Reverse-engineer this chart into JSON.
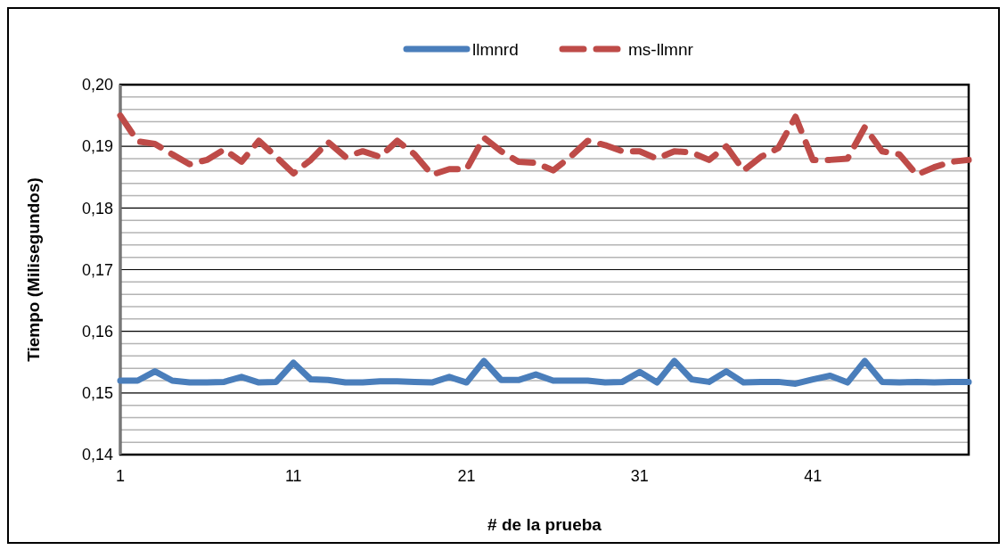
{
  "chart_data": {
    "type": "line",
    "xlabel": "# de la prueba",
    "ylabel": "Tiempo (Milisegundos)",
    "x": [
      1,
      2,
      3,
      4,
      5,
      6,
      7,
      8,
      9,
      10,
      11,
      12,
      13,
      14,
      15,
      16,
      17,
      18,
      19,
      20,
      21,
      22,
      23,
      24,
      25,
      26,
      27,
      28,
      29,
      30,
      31,
      32,
      33,
      34,
      35,
      36,
      37,
      38,
      39,
      40,
      41,
      42,
      43,
      44,
      45,
      46,
      47,
      48,
      49,
      50
    ],
    "series": [
      {
        "name": "llmnrd",
        "color": "#4a7ebb",
        "line_style": "solid",
        "values": [
          0.152,
          0.152,
          0.1535,
          0.152,
          0.1517,
          0.1517,
          0.1518,
          0.1526,
          0.1517,
          0.1518,
          0.1549,
          0.1522,
          0.1521,
          0.1517,
          0.1517,
          0.1519,
          0.1519,
          0.1518,
          0.1517,
          0.1526,
          0.1517,
          0.1552,
          0.1521,
          0.1521,
          0.153,
          0.152,
          0.152,
          0.152,
          0.1517,
          0.1518,
          0.1534,
          0.1517,
          0.1552,
          0.1522,
          0.1518,
          0.1535,
          0.1517,
          0.1518,
          0.1518,
          0.1515,
          0.1522,
          0.1528,
          0.1517,
          0.1552,
          0.1518,
          0.1517,
          0.1518,
          0.1517,
          0.1518,
          0.1518
        ]
      },
      {
        "name": "ms-llmnr",
        "color": "#be4b48",
        "line_style": "dashed",
        "values": [
          0.195,
          0.1908,
          0.1904,
          0.1887,
          0.1871,
          0.1878,
          0.1895,
          0.1875,
          0.1909,
          0.1883,
          0.1856,
          0.1878,
          0.1907,
          0.1883,
          0.1892,
          0.1883,
          0.1909,
          0.1887,
          0.1854,
          0.1863,
          0.1863,
          0.1914,
          0.1892,
          0.1875,
          0.1873,
          0.1861,
          0.1883,
          0.1909,
          0.1902,
          0.1892,
          0.1892,
          0.188,
          0.1892,
          0.189,
          0.1878,
          0.19,
          0.1861,
          0.1883,
          0.1897,
          0.1948,
          0.1878,
          0.1878,
          0.188,
          0.1931,
          0.1892,
          0.1887,
          0.1854,
          0.1866,
          0.1875,
          0.1878
        ]
      }
    ],
    "xlim": [
      1,
      50
    ],
    "xticks": [
      1,
      11,
      21,
      31,
      41
    ],
    "ylim": [
      0.14,
      0.2
    ],
    "yticks": [
      {
        "value": 0.14,
        "label": "0,14"
      },
      {
        "value": 0.142,
        "label": null
      },
      {
        "value": 0.144,
        "label": null
      },
      {
        "value": 0.146,
        "label": null
      },
      {
        "value": 0.148,
        "label": null
      },
      {
        "value": 0.15,
        "label": "0,15"
      },
      {
        "value": 0.152,
        "label": null
      },
      {
        "value": 0.154,
        "label": null
      },
      {
        "value": 0.156,
        "label": null
      },
      {
        "value": 0.158,
        "label": null
      },
      {
        "value": 0.16,
        "label": "0,16"
      },
      {
        "value": 0.162,
        "label": null
      },
      {
        "value": 0.164,
        "label": null
      },
      {
        "value": 0.166,
        "label": null
      },
      {
        "value": 0.168,
        "label": null
      },
      {
        "value": 0.17,
        "label": "0,17"
      },
      {
        "value": 0.172,
        "label": null
      },
      {
        "value": 0.174,
        "label": null
      },
      {
        "value": 0.176,
        "label": null
      },
      {
        "value": 0.178,
        "label": null
      },
      {
        "value": 0.18,
        "label": "0,18"
      },
      {
        "value": 0.182,
        "label": null
      },
      {
        "value": 0.184,
        "label": null
      },
      {
        "value": 0.186,
        "label": null
      },
      {
        "value": 0.188,
        "label": null
      },
      {
        "value": 0.19,
        "label": "0,19"
      },
      {
        "value": 0.192,
        "label": null
      },
      {
        "value": 0.194,
        "label": null
      },
      {
        "value": 0.196,
        "label": null
      },
      {
        "value": 0.198,
        "label": null
      },
      {
        "value": 0.2,
        "label": "0,20"
      }
    ],
    "grid": "y",
    "legend": "top",
    "marker": "none"
  }
}
